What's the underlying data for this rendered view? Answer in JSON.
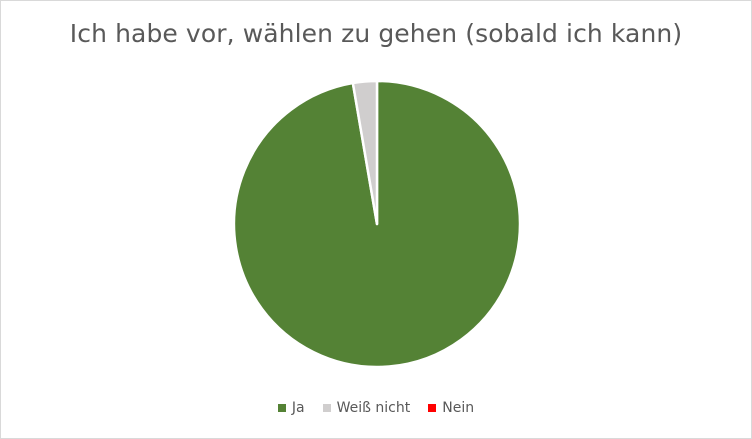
{
  "chart_data": {
    "type": "pie",
    "title": "Ich habe vor, wählen zu gehen (sobald ich kann)",
    "categories": [
      "Ja",
      "Weiß nicht",
      "Nein"
    ],
    "values": [
      97.3,
      2.7,
      0
    ],
    "colors": [
      "#548235",
      "#d0cece",
      "#ff0000"
    ],
    "slice_border_color": "#ffffff",
    "legend_position": "bottom",
    "start_angle": "12 o'clock",
    "direction": "clockwise"
  }
}
